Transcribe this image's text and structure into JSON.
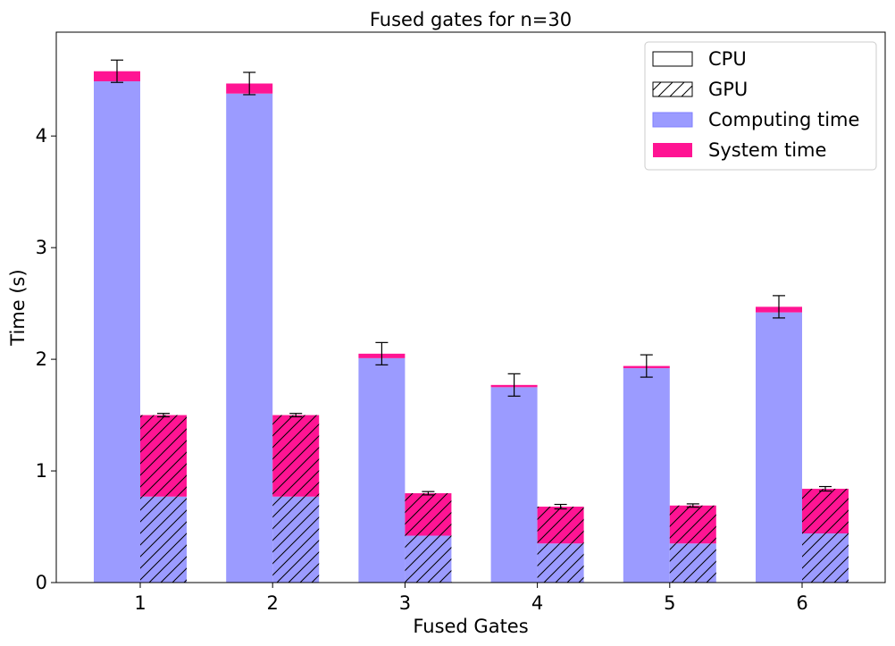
{
  "chart_data": {
    "type": "bar",
    "title": "Fused gates for n=30",
    "xlabel": "Fused Gates",
    "ylabel": "Time (s)",
    "categories": [
      "1",
      "2",
      "3",
      "4",
      "5",
      "6"
    ],
    "yticks": [
      "0",
      "1",
      "2",
      "3",
      "4"
    ],
    "ylim": [
      0,
      4.93
    ],
    "stacked": true,
    "groups": [
      "CPU",
      "GPU"
    ],
    "series": [
      {
        "name": "Computing time",
        "color": "#9b9bff",
        "cpu": [
          4.49,
          4.38,
          2.01,
          1.75,
          1.92,
          2.42
        ],
        "gpu": [
          0.77,
          0.77,
          0.42,
          0.35,
          0.35,
          0.44
        ]
      },
      {
        "name": "System time",
        "color": "#ff1493",
        "cpu": [
          0.09,
          0.09,
          0.04,
          0.02,
          0.02,
          0.05
        ],
        "gpu": [
          0.73,
          0.73,
          0.38,
          0.33,
          0.34,
          0.4
        ]
      }
    ],
    "error_bars": {
      "cpu": [
        0.1,
        0.1,
        0.1,
        0.1,
        0.1,
        0.1
      ],
      "gpu": [
        0.015,
        0.015,
        0.015,
        0.02,
        0.015,
        0.02
      ]
    },
    "legend": {
      "position": "top-right",
      "entries": [
        {
          "label": "CPU",
          "style": "outline"
        },
        {
          "label": "GPU",
          "style": "hatch"
        },
        {
          "label": "Computing time",
          "style": "fill-computing"
        },
        {
          "label": "System time",
          "style": "fill-system"
        }
      ]
    },
    "grid": false
  }
}
